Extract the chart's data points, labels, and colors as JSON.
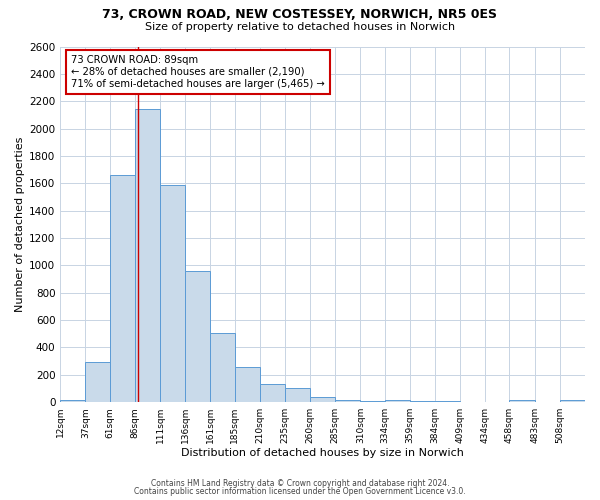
{
  "title1": "73, CROWN ROAD, NEW COSTESSEY, NORWICH, NR5 0ES",
  "title2": "Size of property relative to detached houses in Norwich",
  "xlabel": "Distribution of detached houses by size in Norwich",
  "ylabel": "Number of detached properties",
  "footnote1": "Contains HM Land Registry data © Crown copyright and database right 2024.",
  "footnote2": "Contains public sector information licensed under the Open Government Licence v3.0.",
  "bin_labels": [
    "12sqm",
    "37sqm",
    "61sqm",
    "86sqm",
    "111sqm",
    "136sqm",
    "161sqm",
    "185sqm",
    "210sqm",
    "235sqm",
    "260sqm",
    "285sqm",
    "310sqm",
    "334sqm",
    "359sqm",
    "384sqm",
    "409sqm",
    "434sqm",
    "458sqm",
    "483sqm",
    "508sqm"
  ],
  "bin_edges": [
    12,
    37,
    61,
    86,
    111,
    136,
    161,
    185,
    210,
    235,
    260,
    285,
    310,
    334,
    359,
    384,
    409,
    434,
    458,
    483,
    508
  ],
  "bar_heights": [
    15,
    295,
    1660,
    2140,
    1590,
    960,
    505,
    255,
    130,
    100,
    40,
    15,
    5,
    15,
    5,
    5,
    0,
    0,
    15,
    0,
    15
  ],
  "bar_color": "#c9daea",
  "bar_edge_color": "#5b9bd5",
  "property_size": 89,
  "vline_color": "#cc0000",
  "annotation_text": "73 CROWN ROAD: 89sqm\n← 28% of detached houses are smaller (2,190)\n71% of semi-detached houses are larger (5,465) →",
  "annotation_box_color": "#ffffff",
  "annotation_box_edge": "#cc0000",
  "ylim": [
    0,
    2600
  ],
  "yticks": [
    0,
    200,
    400,
    600,
    800,
    1000,
    1200,
    1400,
    1600,
    1800,
    2000,
    2200,
    2400,
    2600
  ],
  "grid_color": "#c8d4e3",
  "bg_color": "#ffffff",
  "plot_bg_color": "#ffffff"
}
